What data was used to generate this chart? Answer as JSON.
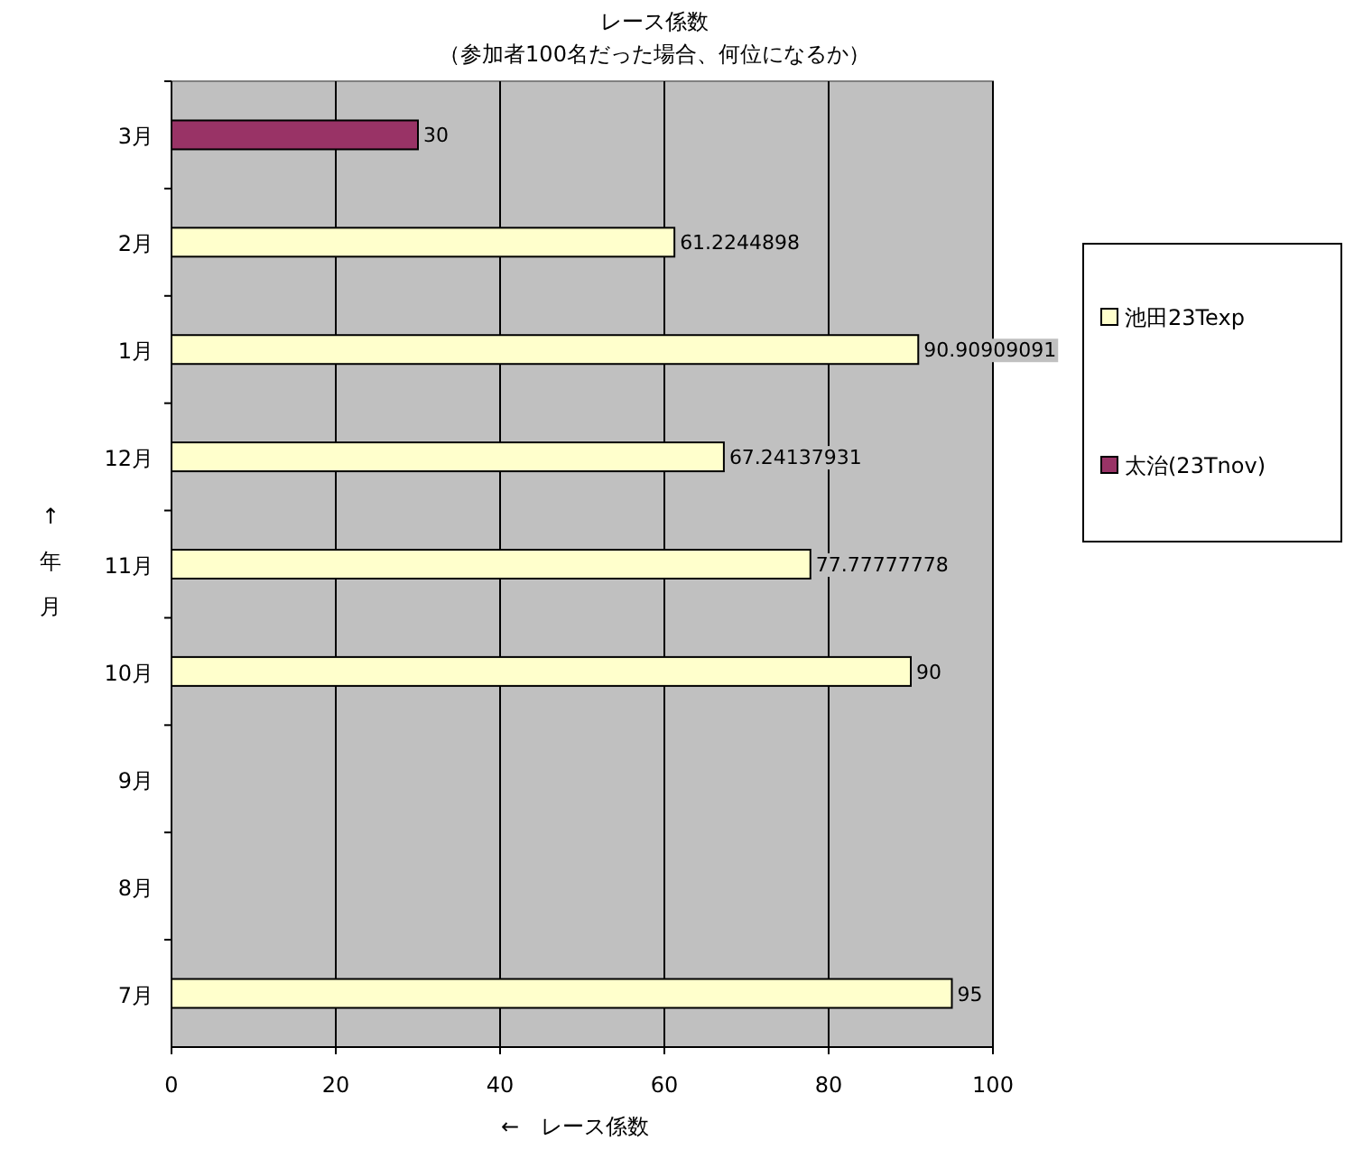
{
  "chart_data": {
    "type": "bar",
    "orientation": "horizontal",
    "stacked": true,
    "title": "レース係数",
    "subtitle": "（参加者100名だった場合、何位になるか）",
    "xlabel": "←　レース係数",
    "ylabel": "↑年月",
    "categories": [
      "3月",
      "2月",
      "1月",
      "12月",
      "11月",
      "10月",
      "9月",
      "8月",
      "7月"
    ],
    "series": [
      {
        "name": "池田23Texp",
        "color": "#ffffcc",
        "values": [
          null,
          61.2244898,
          90.90909091,
          67.24137931,
          77.77777778,
          90,
          null,
          null,
          95
        ]
      },
      {
        "name": "太治(23Tnov)",
        "color": "#993366",
        "values": [
          30,
          null,
          null,
          null,
          null,
          null,
          null,
          null,
          null
        ]
      }
    ],
    "xlim": [
      0,
      100
    ],
    "xticks": [
      0,
      20,
      40,
      60,
      80,
      100
    ],
    "grid": "x",
    "legend": "right",
    "data_labels": true
  }
}
